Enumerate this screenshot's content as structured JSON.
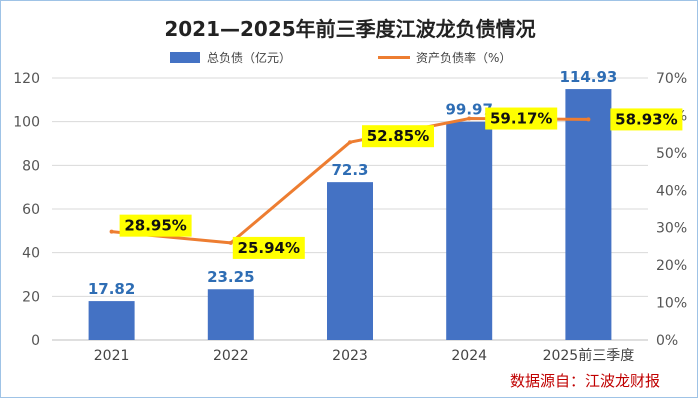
{
  "chart_data": {
    "type": "bar",
    "title": "2021—2025年前三季度江波龙负债情况",
    "categories": [
      "2021",
      "2022",
      "2023",
      "2024",
      "2025前三季度"
    ],
    "series": [
      {
        "name": "总负债（亿元）",
        "kind": "bar",
        "axis": "left",
        "color": "#4472c4",
        "values": [
          17.82,
          23.25,
          72.3,
          99.97,
          114.93
        ],
        "labels": [
          "17.82",
          "23.25",
          "72.3",
          "99.97",
          "114.93"
        ]
      },
      {
        "name": "资产负债率（%）",
        "kind": "line",
        "axis": "right",
        "color": "#ed7d31",
        "values": [
          28.95,
          25.94,
          52.85,
          59.17,
          58.93
        ],
        "labels": [
          "28.95%",
          "25.94%",
          "52.85%",
          "59.17%",
          "58.93%"
        ]
      }
    ],
    "y_left": {
      "min": 0,
      "max": 120,
      "ticks": [
        "0",
        "20",
        "40",
        "60",
        "80",
        "100",
        "120"
      ]
    },
    "y_right": {
      "min": 0,
      "max": 70,
      "ticks": [
        "0%",
        "10%",
        "20%",
        "30%",
        "40%",
        "50%",
        "60%",
        "70%"
      ]
    },
    "grid": true,
    "legend": "top-center",
    "source": "数据源自：江波龙财报",
    "colors": {
      "bar_label": "#2e6db4",
      "line_label_bg": "#ffff00",
      "source": "#c00000",
      "title": "#222222"
    }
  }
}
